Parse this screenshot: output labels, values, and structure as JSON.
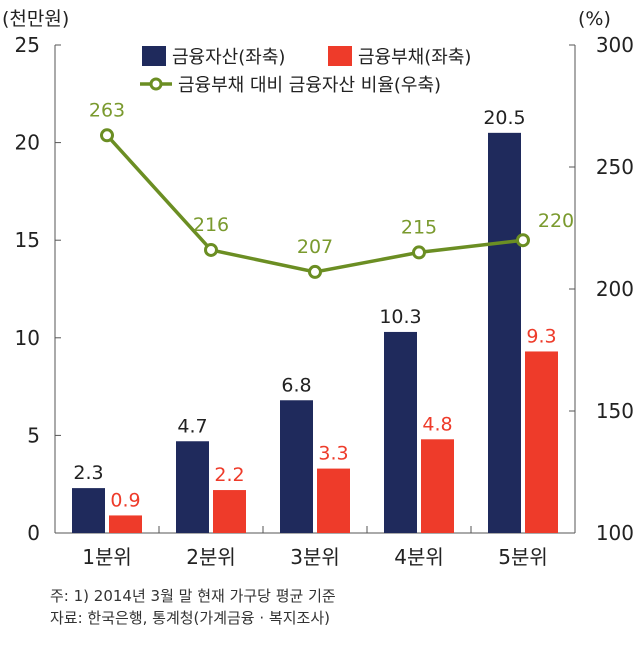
{
  "chart_data": {
    "type": "bar",
    "categories": [
      "1분위",
      "2분위",
      "3분위",
      "4분위",
      "5분위"
    ],
    "left_axis": {
      "unit_label": "(천만원)",
      "ylim": [
        0,
        25
      ],
      "ticks": [
        0,
        5,
        10,
        15,
        20,
        25
      ]
    },
    "right_axis": {
      "unit_label": "(%)",
      "ylim": [
        100,
        300
      ],
      "ticks": [
        100,
        150,
        200,
        250,
        300
      ]
    },
    "series": [
      {
        "name": "금융자산(좌축)",
        "type": "bar",
        "axis": "left",
        "color": "#1f2a5c",
        "label_color": "#222222",
        "values": [
          2.3,
          4.7,
          6.8,
          10.3,
          20.5
        ],
        "labels": [
          "2.3",
          "4.7",
          "6.8",
          "10.3",
          "20.5"
        ]
      },
      {
        "name": "금융부채(좌축)",
        "type": "bar",
        "axis": "left",
        "color": "#ee3b2a",
        "label_color": "#ee3b2a",
        "values": [
          0.9,
          2.2,
          3.3,
          4.8,
          9.3
        ],
        "labels": [
          "0.9",
          "2.2",
          "3.3",
          "4.8",
          "9.3"
        ]
      },
      {
        "name": "금융부채 대비 금융자산 비율(우축)",
        "type": "line",
        "axis": "right",
        "color": "#6b8e23",
        "label_color": "#7a9a2e",
        "values": [
          263,
          216,
          207,
          215,
          220
        ],
        "labels": [
          "263",
          "216",
          "207",
          "215",
          "220"
        ]
      }
    ],
    "legend_position": "top-center",
    "grid": false
  },
  "notes": [
    "주: 1) 2014년 3월 말 현재 가구당 평균 기준",
    "자료: 한국은행, 통계청(가계금융 · 복지조사)"
  ]
}
